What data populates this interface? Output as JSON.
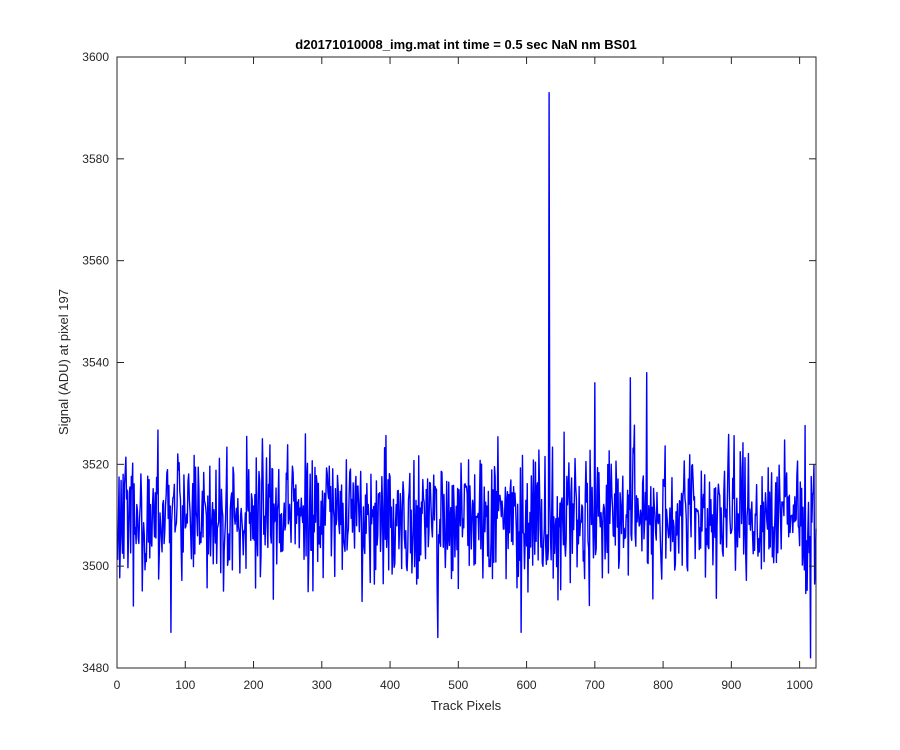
{
  "chart_data": {
    "type": "line",
    "title": "d20171010008_img.mat int time = 0.5 sec  NaN nm BS01",
    "xlabel": "Track Pixels",
    "ylabel": "Signal (ADU) at pixel 197",
    "xlim": [
      0,
      1024
    ],
    "ylim": [
      3480,
      3600
    ],
    "xticks": [
      "0",
      "100",
      "200",
      "300",
      "400",
      "500",
      "600",
      "700",
      "800",
      "900",
      "1000"
    ],
    "yticks": [
      "3480",
      "3500",
      "3520",
      "3540",
      "3560",
      "3580",
      "3600"
    ],
    "grid": false,
    "legend": "none",
    "line_color": "#0000ff",
    "series": [
      {
        "x_start": 1,
        "x_step": 1,
        "baseline": 3510,
        "noise_amplitude": 9,
        "spikes": [
          {
            "x": 633,
            "y": 3593
          },
          {
            "x": 1016,
            "y": 3482
          },
          {
            "x": 470,
            "y": 3486
          },
          {
            "x": 79,
            "y": 3487
          },
          {
            "x": 592,
            "y": 3487
          },
          {
            "x": 776,
            "y": 3538
          },
          {
            "x": 700,
            "y": 3536
          },
          {
            "x": 752,
            "y": 3537
          }
        ]
      }
    ]
  }
}
